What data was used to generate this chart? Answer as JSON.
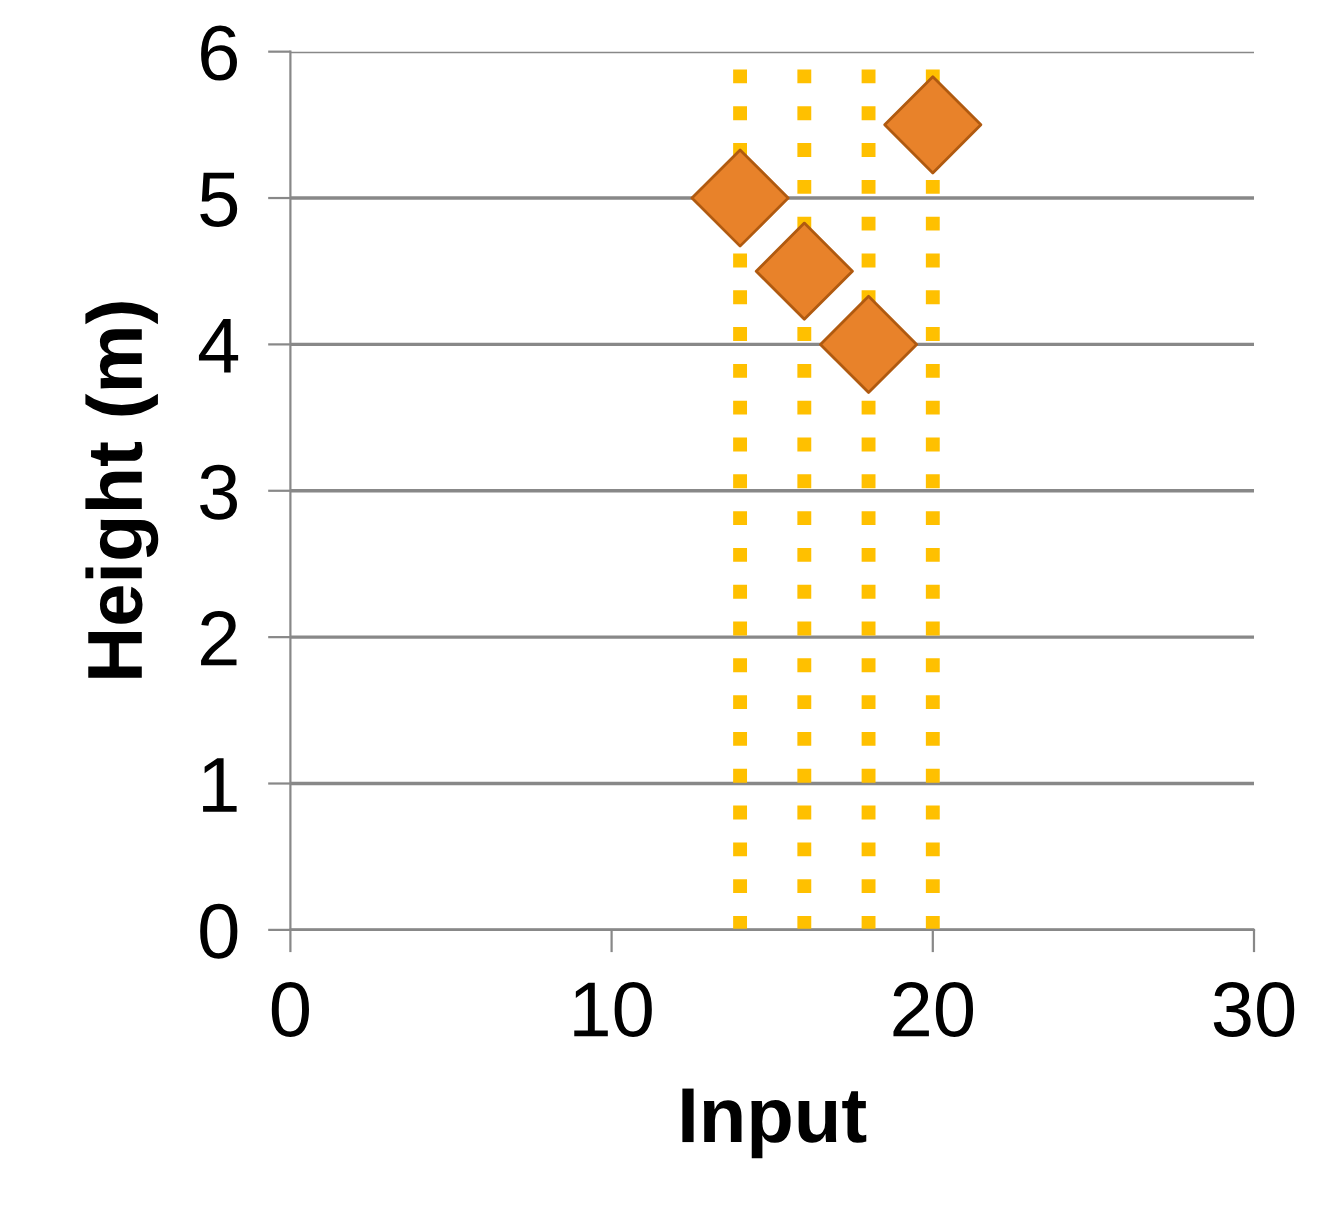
{
  "chart_data": {
    "type": "scatter",
    "xlabel": "Input",
    "ylabel": "Height (m)",
    "x": [
      14,
      16,
      18,
      20
    ],
    "series": [
      {
        "color": "#e8822a",
        "values": [
          5,
          4.5,
          4,
          5.5
        ]
      }
    ],
    "marker": "diamond",
    "xlim": [
      0,
      30
    ],
    "xticks": [
      0,
      10,
      20,
      30
    ],
    "ylim": [
      0,
      6
    ],
    "yticks": [
      0,
      1,
      2,
      3,
      4,
      5,
      6
    ],
    "grid": "y",
    "ref_lines": [
      {
        "axis": "x",
        "value": 14,
        "color": "#ffc000",
        "line_style": "dotted"
      },
      {
        "axis": "x",
        "value": 16,
        "color": "#ffc000",
        "line_style": "dotted"
      },
      {
        "axis": "x",
        "value": 18,
        "color": "#ffc000",
        "line_style": "dotted"
      },
      {
        "axis": "x",
        "value": 20,
        "color": "#ffc000",
        "line_style": "dotted"
      }
    ]
  }
}
